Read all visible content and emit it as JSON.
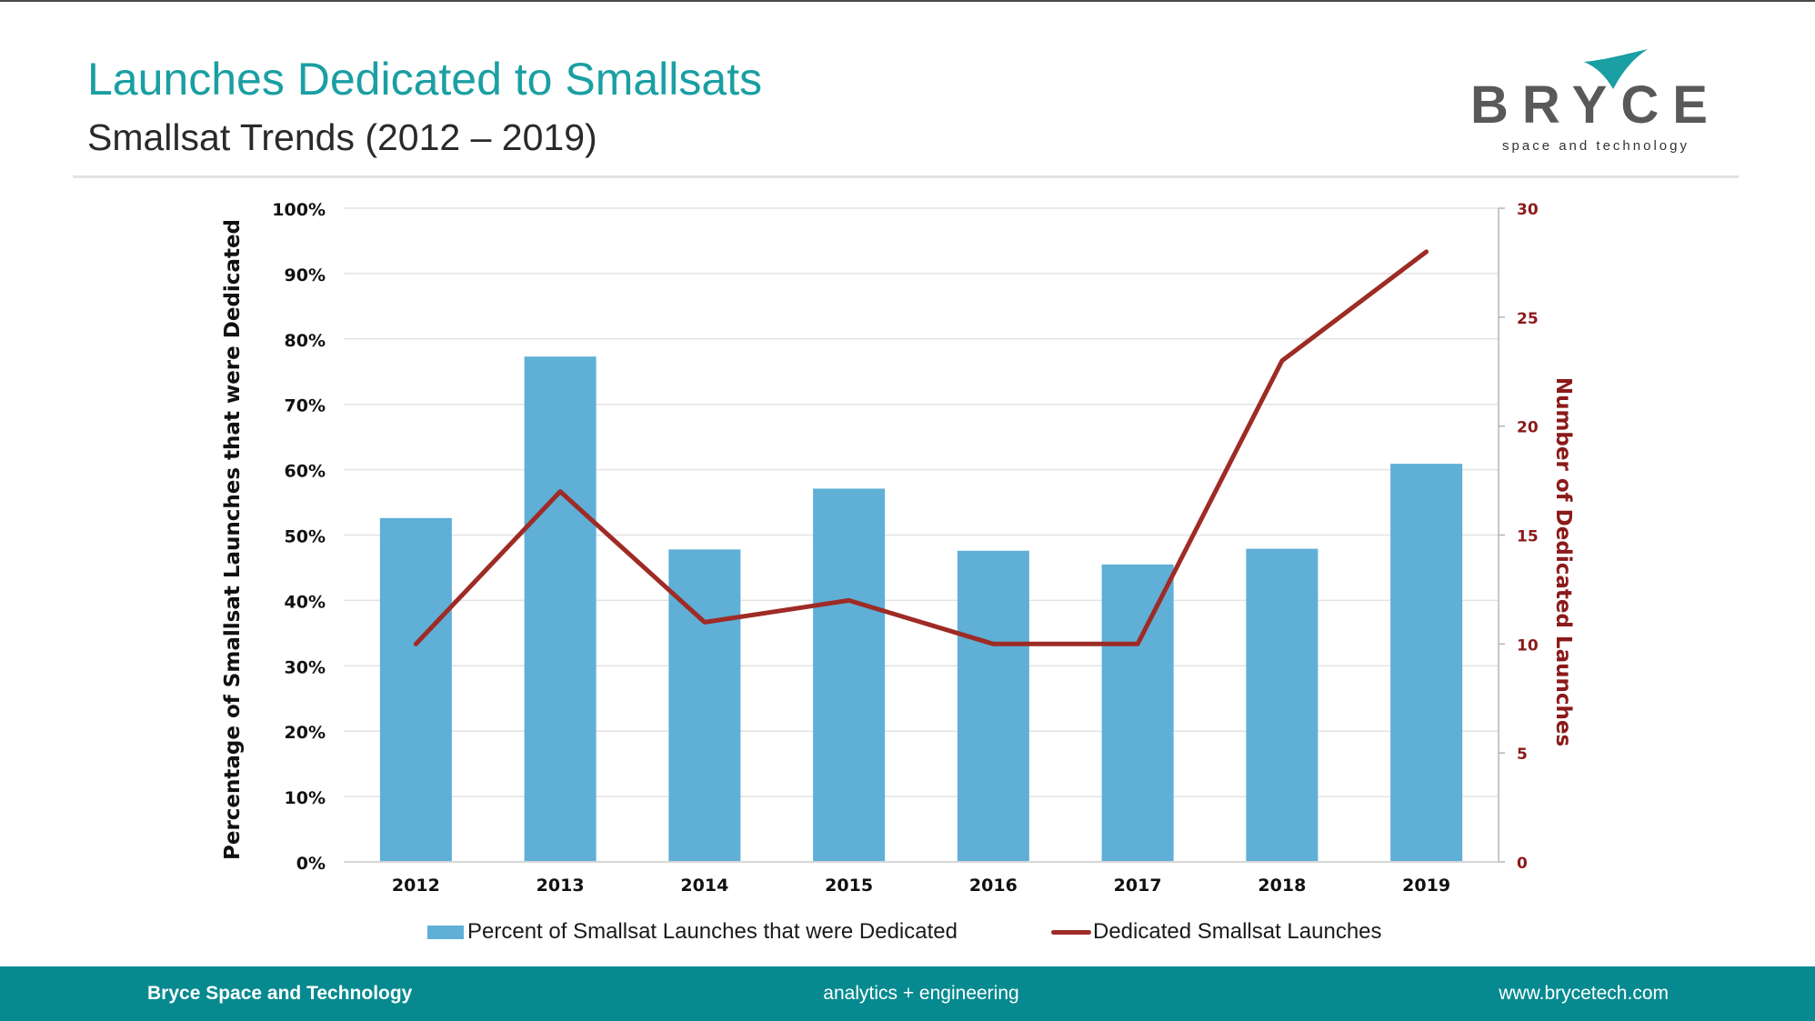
{
  "header": {
    "title": "Launches Dedicated to Smallsats",
    "subtitle": "Smallsat Trends (2012 – 2019)"
  },
  "logo": {
    "word": "BRYCE",
    "tagline": "space and technology"
  },
  "footer": {
    "left": "Bryce Space and Technology",
    "center": "analytics + engineering",
    "right": "www.brycetech.com"
  },
  "chart_data": {
    "type": "bar",
    "categories": [
      "2012",
      "2013",
      "2014",
      "2015",
      "2016",
      "2017",
      "2018",
      "2019"
    ],
    "series": [
      {
        "name": "Percent of Smallsat Launches that were Dedicated",
        "type": "bar",
        "axis": "left",
        "color": "#5fafd6",
        "values": [
          52.6,
          77.3,
          47.8,
          57.1,
          47.6,
          45.5,
          47.9,
          60.9
        ]
      },
      {
        "name": "Dedicated Smallsat Launches",
        "type": "line",
        "axis": "right",
        "color": "#9e2b25",
        "values": [
          10,
          17,
          11,
          12,
          10,
          10,
          23,
          28
        ]
      }
    ],
    "ylabel": "Percentage of Smallsat Launches that were Dedicated",
    "y2label": "Number of Dedicated Launches",
    "ylim": [
      0,
      100
    ],
    "y2lim": [
      0,
      30
    ],
    "yticks": [
      "0%",
      "10%",
      "20%",
      "30%",
      "40%",
      "50%",
      "60%",
      "70%",
      "80%",
      "90%",
      "100%"
    ],
    "y2ticks": [
      "0",
      "5",
      "10",
      "15",
      "20",
      "25",
      "30"
    ],
    "grid": true,
    "legend_position": "bottom",
    "label_color_left": "#111111",
    "label_color_right": "#8b1a1a"
  }
}
